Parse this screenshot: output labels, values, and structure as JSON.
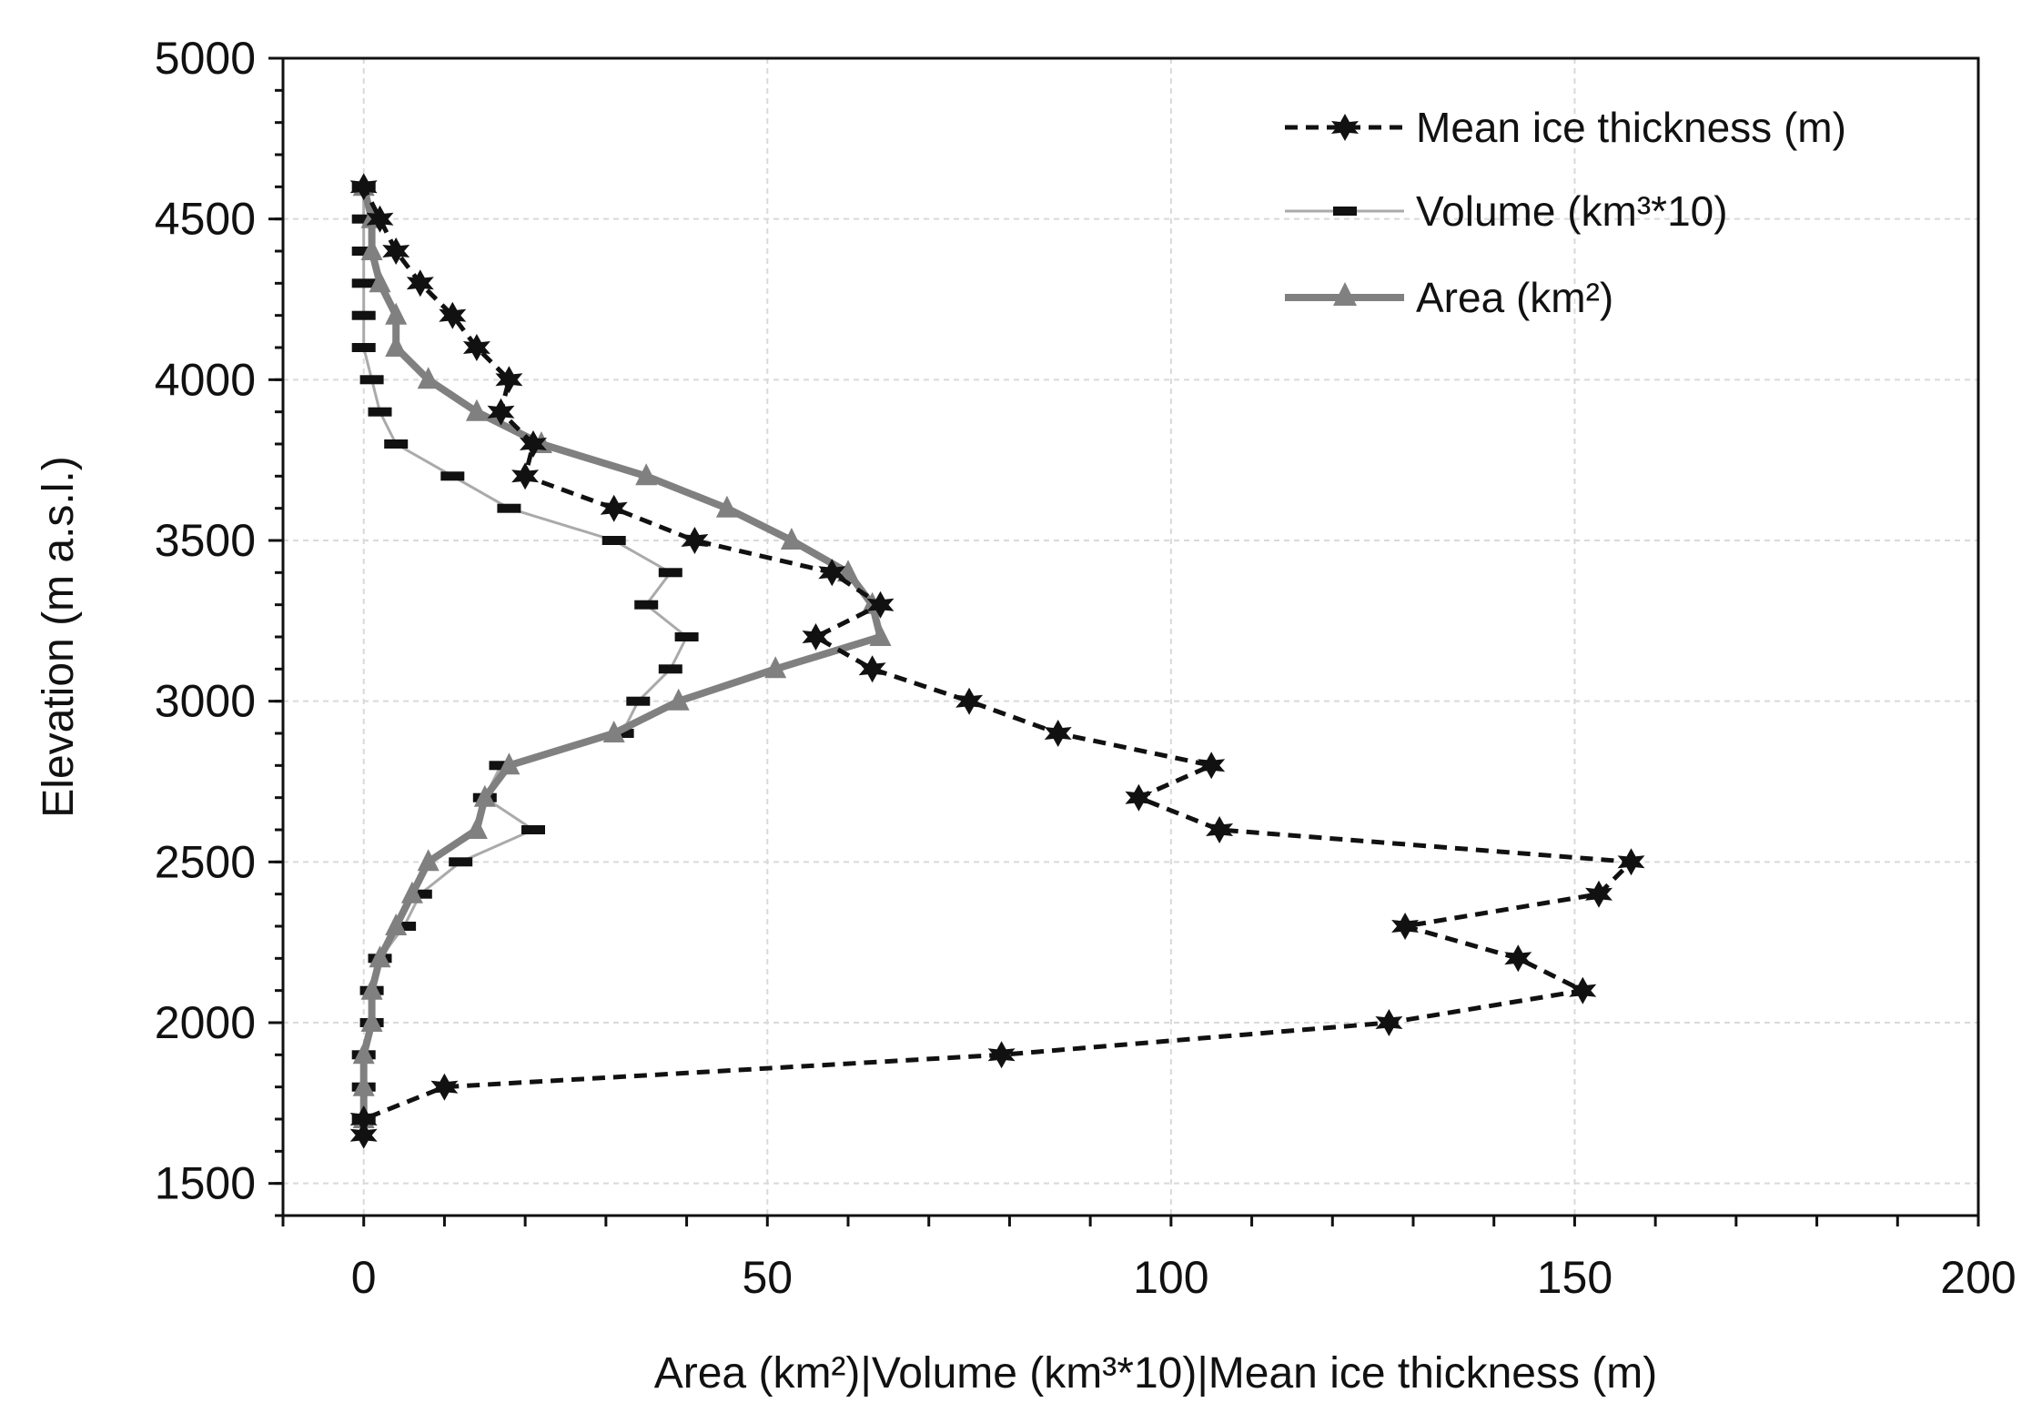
{
  "chart_data": {
    "type": "line",
    "xlabel": "Area (km²)|Volume (km³*10)|Mean ice thickness (m)",
    "ylabel": "Elevation (m a.s.l.)",
    "xlim": [
      -10,
      200
    ],
    "ylim": [
      1400,
      5000
    ],
    "xticks": [
      0,
      50,
      100,
      150,
      200
    ],
    "yticks": [
      1500,
      2000,
      2500,
      3000,
      3500,
      4000,
      4500,
      5000
    ],
    "xtick_labels": [
      "0",
      "50",
      "100",
      "150",
      "200"
    ],
    "ytick_labels": [
      "1500",
      "2000",
      "2500",
      "3000",
      "3500",
      "4000",
      "4500",
      "5000"
    ],
    "x_minor_step": 10,
    "y_minor_step": 100,
    "grid": true,
    "legend_position": "top-right",
    "series": [
      {
        "name": "Mean ice thickness (m)",
        "style": "dashed-star",
        "color": "#111111",
        "points": [
          [
            0,
            1650
          ],
          [
            0,
            1700
          ],
          [
            10,
            1800
          ],
          [
            79,
            1900
          ],
          [
            127,
            2000
          ],
          [
            151,
            2100
          ],
          [
            143,
            2200
          ],
          [
            129,
            2300
          ],
          [
            153,
            2400
          ],
          [
            157,
            2500
          ],
          [
            106,
            2600
          ],
          [
            96,
            2700
          ],
          [
            105,
            2800
          ],
          [
            86,
            2900
          ],
          [
            75,
            3000
          ],
          [
            63,
            3100
          ],
          [
            56,
            3200
          ],
          [
            64,
            3300
          ],
          [
            58,
            3400
          ],
          [
            41,
            3500
          ],
          [
            31,
            3600
          ],
          [
            20,
            3700
          ],
          [
            21,
            3800
          ],
          [
            17,
            3900
          ],
          [
            18,
            4000
          ],
          [
            14,
            4100
          ],
          [
            11,
            4200
          ],
          [
            7,
            4300
          ],
          [
            4,
            4400
          ],
          [
            2,
            4500
          ],
          [
            0,
            4600
          ]
        ]
      },
      {
        "name": "Volume (km³*10)",
        "style": "thin-dash-marker",
        "color": "#aaaaaa",
        "points": [
          [
            0,
            1700
          ],
          [
            0,
            1800
          ],
          [
            0,
            1900
          ],
          [
            1,
            2000
          ],
          [
            1,
            2100
          ],
          [
            2,
            2200
          ],
          [
            5,
            2300
          ],
          [
            7,
            2400
          ],
          [
            12,
            2500
          ],
          [
            21,
            2600
          ],
          [
            15,
            2700
          ],
          [
            17,
            2800
          ],
          [
            32,
            2900
          ],
          [
            34,
            3000
          ],
          [
            38,
            3100
          ],
          [
            40,
            3200
          ],
          [
            35,
            3300
          ],
          [
            38,
            3400
          ],
          [
            31,
            3500
          ],
          [
            18,
            3600
          ],
          [
            11,
            3700
          ],
          [
            4,
            3800
          ],
          [
            2,
            3900
          ],
          [
            1,
            4000
          ],
          [
            0,
            4100
          ],
          [
            0,
            4200
          ],
          [
            0,
            4300
          ],
          [
            0,
            4400
          ],
          [
            0,
            4500
          ],
          [
            0,
            4600
          ]
        ]
      },
      {
        "name": "Area (km²)",
        "style": "thick-triangle",
        "color": "#808080",
        "points": [
          [
            0,
            1700
          ],
          [
            0,
            1800
          ],
          [
            0,
            1900
          ],
          [
            1,
            2000
          ],
          [
            1,
            2100
          ],
          [
            2,
            2200
          ],
          [
            4,
            2300
          ],
          [
            6,
            2400
          ],
          [
            8,
            2500
          ],
          [
            14,
            2600
          ],
          [
            15,
            2700
          ],
          [
            18,
            2800
          ],
          [
            31,
            2900
          ],
          [
            39,
            3000
          ],
          [
            51,
            3100
          ],
          [
            64,
            3200
          ],
          [
            63,
            3300
          ],
          [
            60,
            3400
          ],
          [
            53,
            3500
          ],
          [
            45,
            3600
          ],
          [
            35,
            3700
          ],
          [
            22,
            3800
          ],
          [
            14,
            3900
          ],
          [
            8,
            4000
          ],
          [
            4,
            4100
          ],
          [
            4,
            4200
          ],
          [
            2,
            4300
          ],
          [
            1,
            4400
          ],
          [
            1,
            4500
          ],
          [
            0,
            4600
          ]
        ]
      }
    ]
  }
}
